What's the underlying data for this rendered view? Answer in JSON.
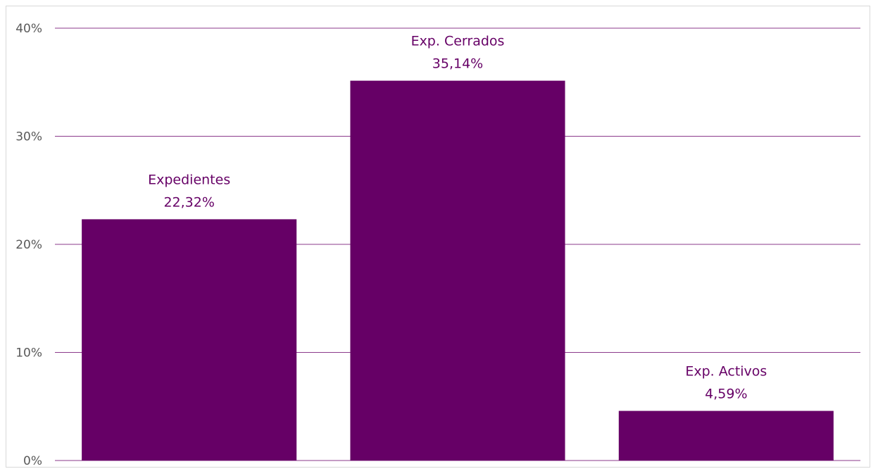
{
  "chart_data": {
    "type": "bar",
    "title": "",
    "xlabel": "",
    "ylabel": "",
    "categories": [
      "Expedientes",
      "Exp. Cerrados",
      "Exp. Activos"
    ],
    "values": [
      22.32,
      35.14,
      4.59
    ],
    "value_labels": [
      "22,32%",
      "35,14%",
      "4,59%"
    ],
    "ylim": [
      0,
      40
    ],
    "y_ticks": [
      0,
      10,
      20,
      30,
      40
    ],
    "y_tick_labels": [
      "0%",
      "10%",
      "20%",
      "30%",
      "40%"
    ],
    "grid": true,
    "legend": "none",
    "colors": {
      "bar": "#660066",
      "gridline": "#8b3a8b",
      "label_text": "#660066",
      "axis_text": "#595959",
      "border": "#d9d9d9"
    }
  }
}
